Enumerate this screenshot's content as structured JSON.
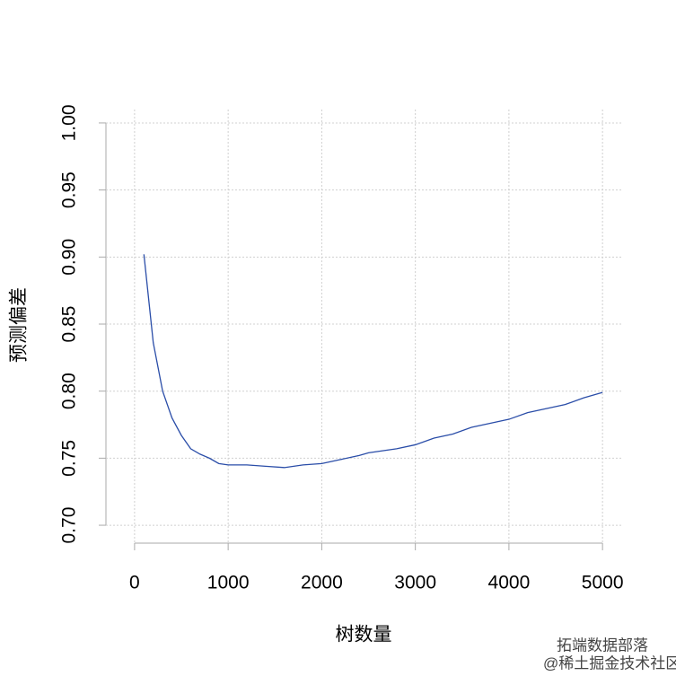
{
  "chart_data": {
    "type": "line",
    "xlabel": "树数量",
    "ylabel": "预测偏差",
    "x": [
      100,
      200,
      300,
      400,
      500,
      600,
      700,
      800,
      900,
      1000,
      1200,
      1400,
      1600,
      1800,
      2000,
      2200,
      2400,
      2500,
      2800,
      3000,
      3200,
      3400,
      3600,
      3800,
      4000,
      4200,
      4400,
      4600,
      4800,
      5000
    ],
    "series": [
      {
        "name": "预测偏差",
        "color": "#2a4da8",
        "values": [
          0.902,
          0.836,
          0.8,
          0.78,
          0.767,
          0.757,
          0.753,
          0.75,
          0.746,
          0.745,
          0.745,
          0.744,
          0.743,
          0.745,
          0.746,
          0.749,
          0.752,
          0.754,
          0.757,
          0.76,
          0.765,
          0.768,
          0.773,
          0.776,
          0.779,
          0.784,
          0.787,
          0.79,
          0.795,
          0.799
        ]
      }
    ],
    "xlim": [
      -210,
      5200
    ],
    "ylim": [
      0.69,
      1.01
    ],
    "xticks": [
      0,
      1000,
      2000,
      3000,
      4000,
      5000
    ],
    "yticks": [
      {
        "value": 0.7,
        "label": "0.70"
      },
      {
        "value": 0.75,
        "label": "0.75"
      },
      {
        "value": 0.8,
        "label": "0.80"
      },
      {
        "value": 0.85,
        "label": "0.85"
      },
      {
        "value": 0.9,
        "label": "0.90"
      },
      {
        "value": 0.95,
        "label": "0.95"
      },
      {
        "value": 1.0,
        "label": "1.00"
      }
    ],
    "grid": true,
    "annotations": [
      "拓端数据部落",
      "@稀土掘金技术社区"
    ]
  }
}
